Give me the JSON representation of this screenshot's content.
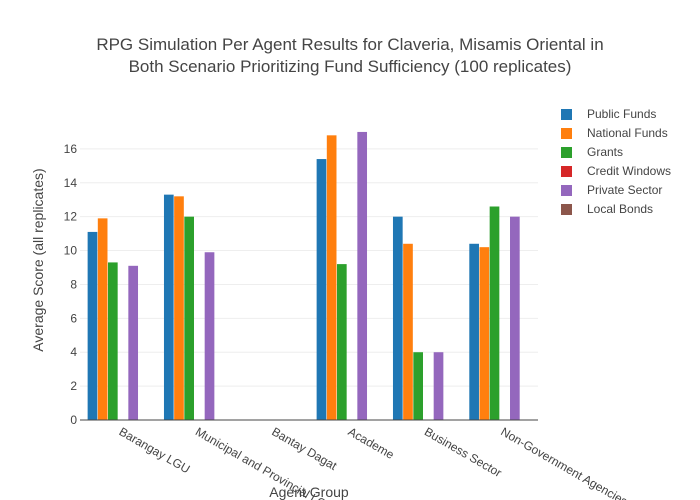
{
  "colors": {
    "Public Funds": "#1f77b4",
    "National Funds": "#ff7f0e",
    "Grants": "#2ca02c",
    "Credit Windows": "#d62728",
    "Private Sector": "#9467bd",
    "Local Bonds": "#8c564b"
  },
  "chart_data": {
    "type": "bar",
    "title_lines": [
      "RPG Simulation Per Agent Results for Claveria, Misamis Oriental in",
      "Both Scenario Prioritizing Fund Sufficiency (100 replicates)"
    ],
    "xlabel": "Agent Group",
    "ylabel": "Average Score (all replicates)",
    "categories": [
      "Barangay LGU",
      "Municipal and Provincial LGU",
      "Bantay Dagat",
      "Academe",
      "Business Sector",
      "Non-Government Agencies"
    ],
    "ylim": [
      0,
      18
    ],
    "yticks": [
      0,
      2,
      4,
      6,
      8,
      10,
      12,
      14,
      16
    ],
    "grid": true,
    "legend_position": "right",
    "series": [
      {
        "name": "Public Funds",
        "values": [
          11.1,
          13.3,
          0,
          15.4,
          12.0,
          10.4
        ]
      },
      {
        "name": "National Funds",
        "values": [
          11.9,
          13.2,
          0,
          16.8,
          10.4,
          10.2
        ]
      },
      {
        "name": "Grants",
        "values": [
          9.3,
          12.0,
          0,
          9.2,
          4.0,
          12.6
        ]
      },
      {
        "name": "Credit Windows",
        "values": [
          0,
          0,
          0,
          0,
          0,
          0
        ]
      },
      {
        "name": "Private Sector",
        "values": [
          9.1,
          9.9,
          0,
          17.0,
          4.0,
          12.0
        ]
      },
      {
        "name": "Local Bonds",
        "values": [
          0,
          0,
          0,
          0,
          0,
          0
        ]
      }
    ]
  }
}
